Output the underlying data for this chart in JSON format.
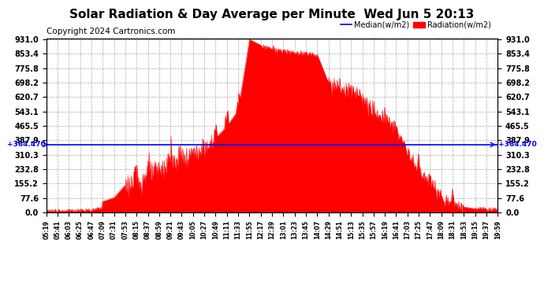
{
  "title": "Solar Radiation & Day Average per Minute  Wed Jun 5 20:13",
  "copyright": "Copyright 2024 Cartronics.com",
  "median_value": 364.47,
  "median_label": "364.470",
  "y_ticks": [
    0.0,
    77.6,
    155.2,
    232.8,
    310.3,
    387.9,
    465.5,
    543.1,
    620.7,
    698.2,
    775.8,
    853.4,
    931.0
  ],
  "y_max": 931.0,
  "y_min": 0.0,
  "legend_median": "Median(w/m2)",
  "legend_radiation": "Radiation(w/m2)",
  "background_color": "#ffffff",
  "fill_color": "#ff0000",
  "line_color": "#ff0000",
  "median_color": "#0000ff",
  "grid_color": "#aaaaaa",
  "title_fontsize": 11,
  "copyright_fontsize": 7.5,
  "x_tick_labels": [
    "05:19",
    "05:41",
    "06:03",
    "06:25",
    "06:47",
    "07:09",
    "07:31",
    "07:53",
    "08:15",
    "08:37",
    "08:59",
    "09:21",
    "09:43",
    "10:05",
    "10:27",
    "10:49",
    "11:11",
    "11:33",
    "11:55",
    "12:17",
    "12:39",
    "13:01",
    "13:23",
    "13:45",
    "14:07",
    "14:29",
    "14:51",
    "15:13",
    "15:35",
    "15:57",
    "16:19",
    "16:41",
    "17:03",
    "17:25",
    "17:47",
    "18:09",
    "18:31",
    "18:53",
    "19:15",
    "19:37",
    "19:59"
  ]
}
